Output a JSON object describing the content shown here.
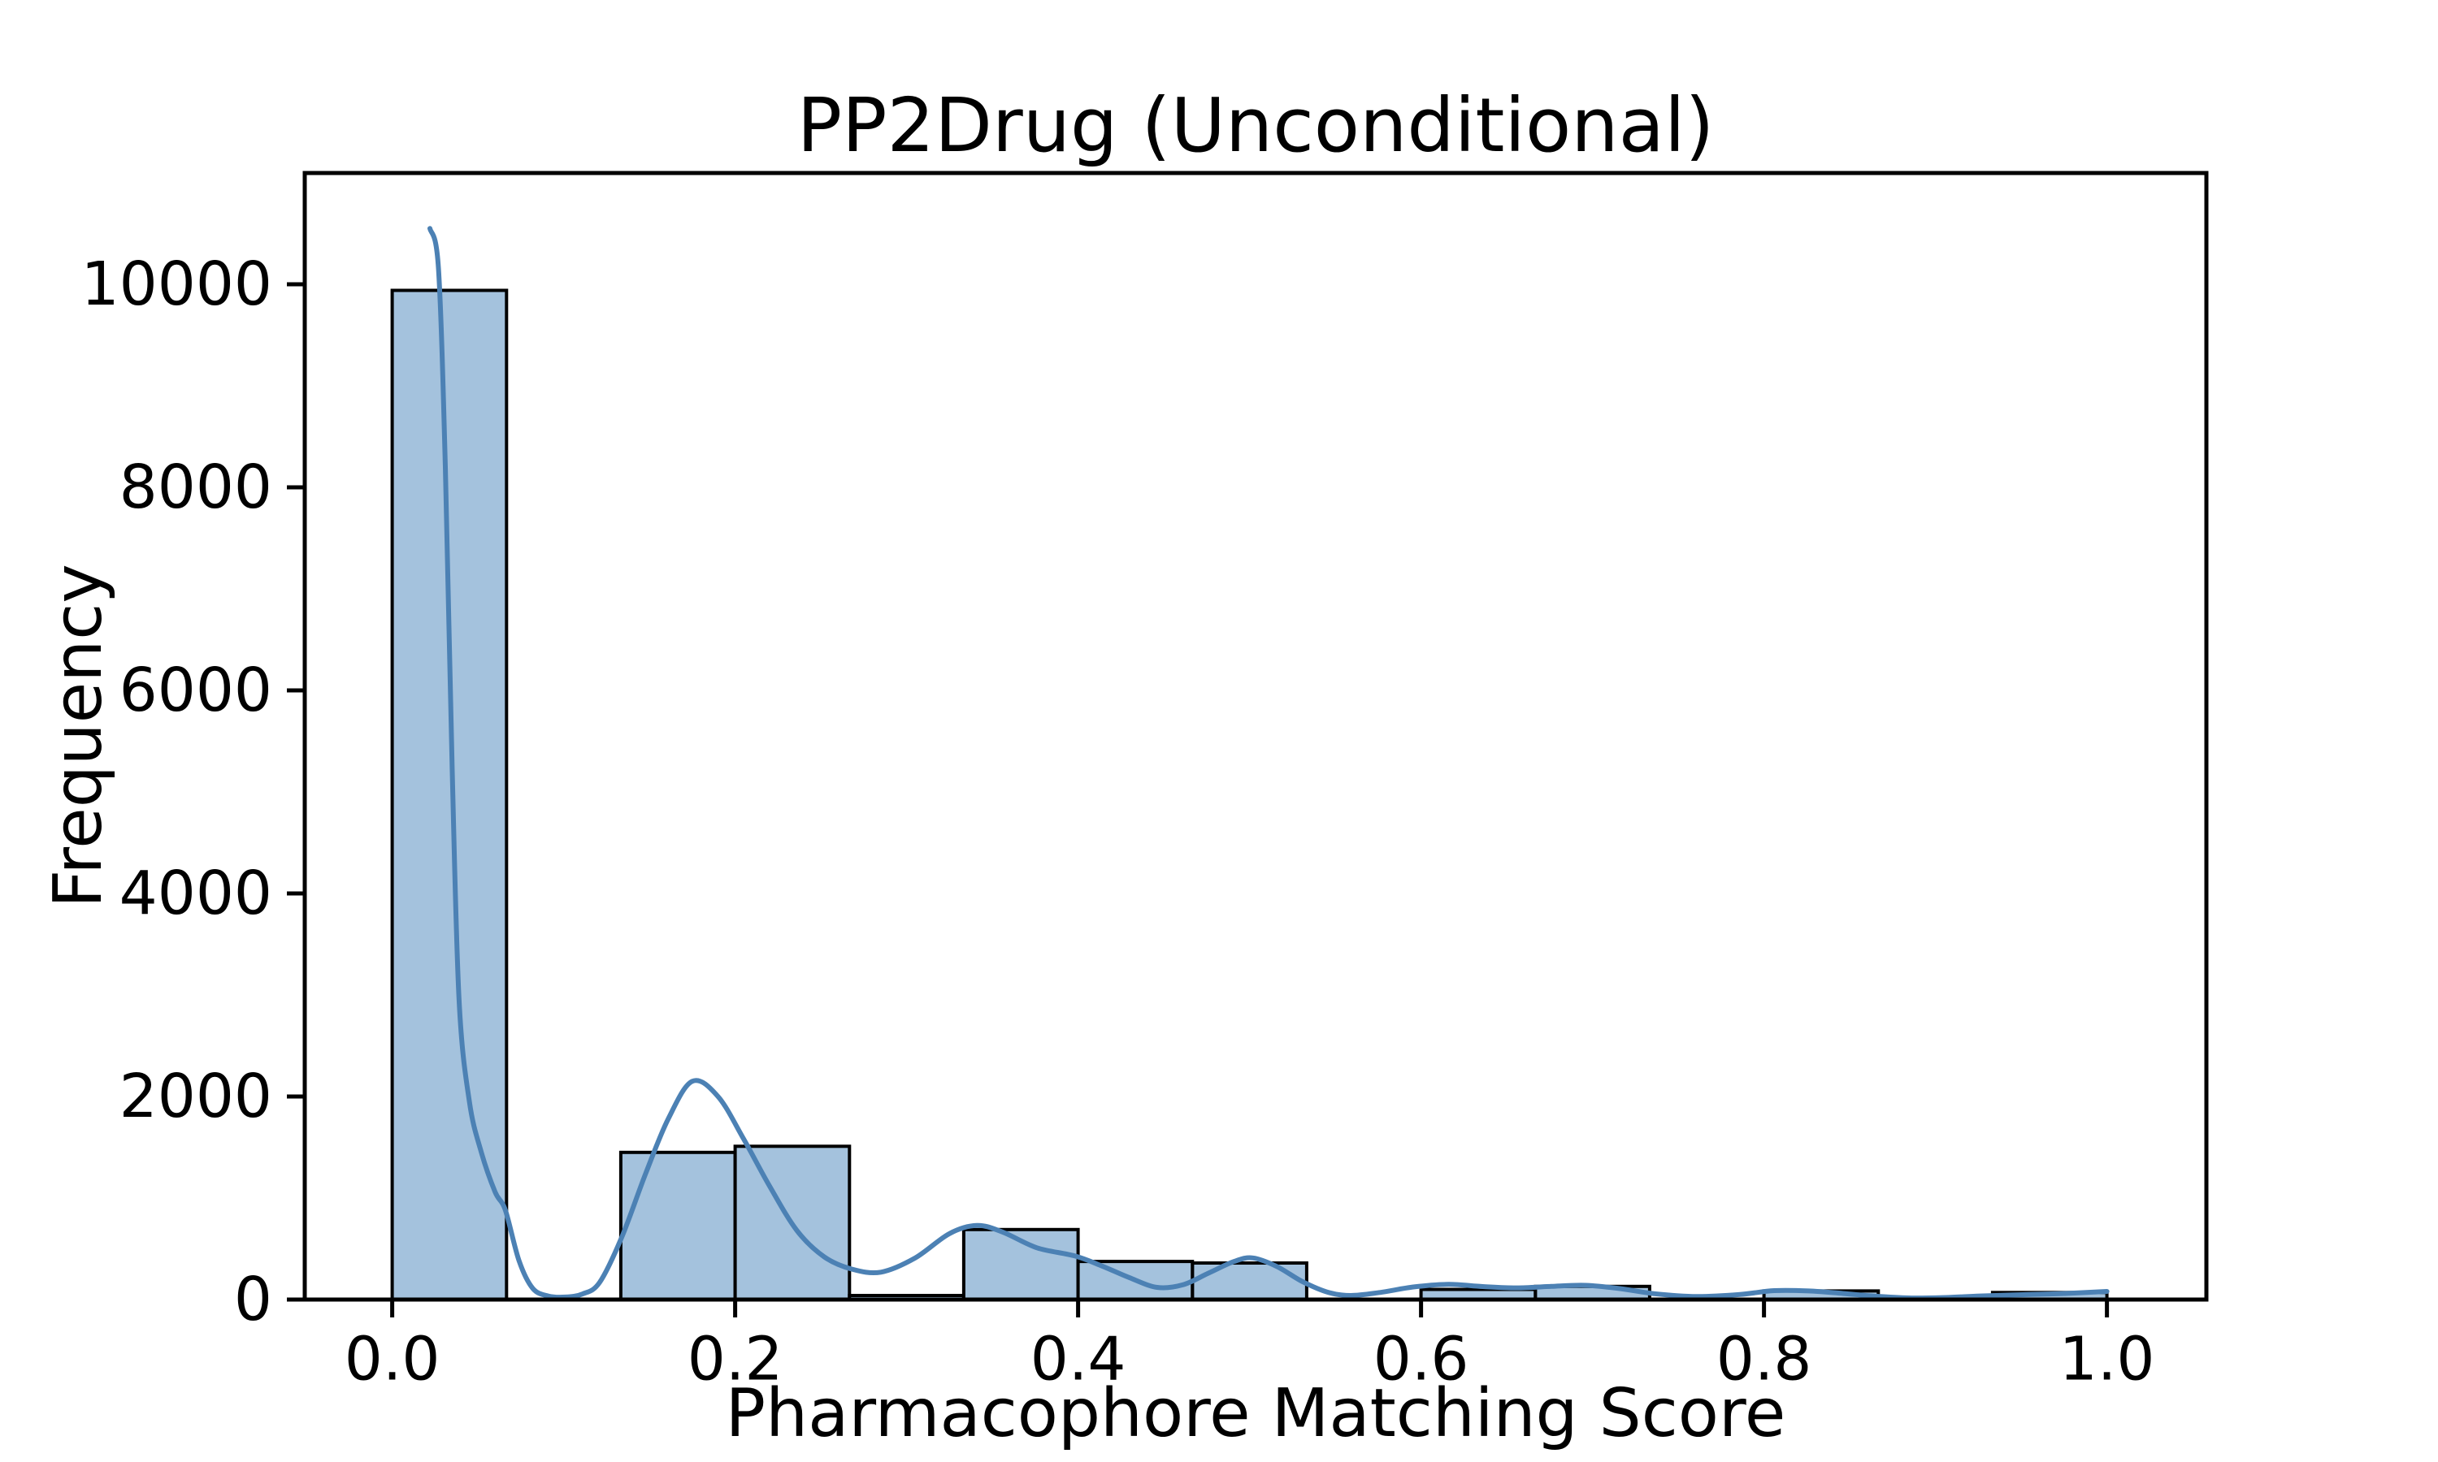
{
  "chart_data": {
    "type": "histogram",
    "title": "PP2Drug (Unconditional)",
    "xlabel": "Pharmacophore Matching Score",
    "ylabel": "Frequency",
    "grid": false,
    "xlim": [
      -0.051,
      1.058
    ],
    "ylim": [
      0,
      11096
    ],
    "x_ticks": {
      "values": [
        0.0,
        0.2,
        0.4,
        0.6,
        0.8,
        1.0
      ],
      "labels": [
        "0.0",
        "0.2",
        "0.4",
        "0.6",
        "0.8",
        "1.0"
      ]
    },
    "y_ticks": {
      "values": [
        0,
        2000,
        4000,
        6000,
        8000,
        10000
      ],
      "labels": [
        "0",
        "2000",
        "4000",
        "6000",
        "8000",
        "10000"
      ]
    },
    "bins": {
      "edges": [
        0.0,
        0.0667,
        0.1333,
        0.2,
        0.2667,
        0.3333,
        0.4,
        0.4667,
        0.5333,
        0.6,
        0.6667,
        0.7333,
        0.8,
        0.8667,
        0.9333,
        1.0
      ],
      "counts": [
        9940,
        0,
        1450,
        1510,
        40,
        690,
        375,
        360,
        0,
        100,
        130,
        0,
        85,
        0,
        70
      ]
    },
    "kde": {
      "name": "kde-density-curve",
      "points": [
        [
          0.022,
          10550
        ],
        [
          0.027,
          10150
        ],
        [
          0.031,
          8200
        ],
        [
          0.035,
          5200
        ],
        [
          0.039,
          2950
        ],
        [
          0.045,
          1950
        ],
        [
          0.052,
          1450
        ],
        [
          0.06,
          1060
        ],
        [
          0.066,
          880
        ],
        [
          0.074,
          380
        ],
        [
          0.082,
          110
        ],
        [
          0.091,
          35
        ],
        [
          0.101,
          25
        ],
        [
          0.111,
          55
        ],
        [
          0.121,
          170
        ],
        [
          0.134,
          620
        ],
        [
          0.148,
          1250
        ],
        [
          0.161,
          1780
        ],
        [
          0.175,
          2150
        ],
        [
          0.19,
          2000
        ],
        [
          0.205,
          1580
        ],
        [
          0.22,
          1120
        ],
        [
          0.236,
          680
        ],
        [
          0.252,
          420
        ],
        [
          0.268,
          300
        ],
        [
          0.285,
          270
        ],
        [
          0.305,
          410
        ],
        [
          0.325,
          650
        ],
        [
          0.341,
          730
        ],
        [
          0.356,
          665
        ],
        [
          0.376,
          510
        ],
        [
          0.398,
          430
        ],
        [
          0.414,
          330
        ],
        [
          0.43,
          215
        ],
        [
          0.446,
          120
        ],
        [
          0.461,
          145
        ],
        [
          0.476,
          260
        ],
        [
          0.491,
          375
        ],
        [
          0.502,
          410
        ],
        [
          0.516,
          325
        ],
        [
          0.531,
          175
        ],
        [
          0.546,
          70
        ],
        [
          0.559,
          40
        ],
        [
          0.576,
          70
        ],
        [
          0.596,
          125
        ],
        [
          0.616,
          150
        ],
        [
          0.636,
          128
        ],
        [
          0.656,
          115
        ],
        [
          0.676,
          130
        ],
        [
          0.696,
          140
        ],
        [
          0.716,
          108
        ],
        [
          0.736,
          58
        ],
        [
          0.761,
          30
        ],
        [
          0.786,
          50
        ],
        [
          0.806,
          88
        ],
        [
          0.826,
          85
        ],
        [
          0.846,
          60
        ],
        [
          0.866,
          32
        ],
        [
          0.886,
          15
        ],
        [
          0.906,
          20
        ],
        [
          0.926,
          35
        ],
        [
          0.951,
          48
        ],
        [
          0.976,
          60
        ],
        [
          1.0,
          80
        ]
      ]
    },
    "colors": {
      "background": "#ffffff",
      "bar_fill": "#a4c2dd",
      "bar_edge": "#000000",
      "kde_line": "#4c81b4",
      "spine": "#000000",
      "text": "#000000"
    }
  }
}
